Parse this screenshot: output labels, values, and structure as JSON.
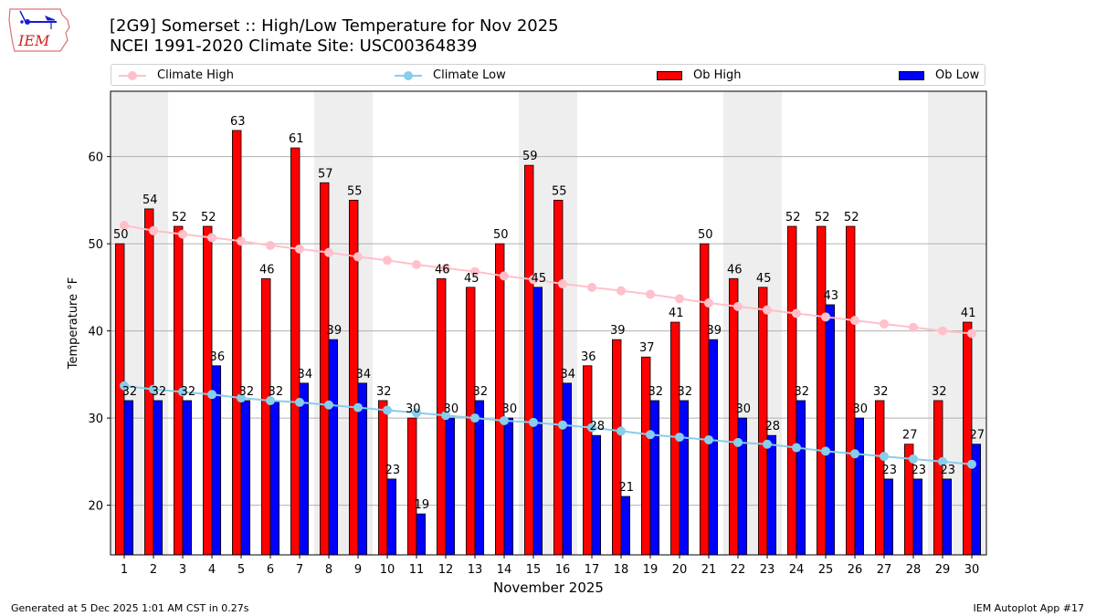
{
  "header": {
    "title_line1": "[2G9] Somerset :: High/Low Temperature for Nov 2025",
    "title_line2": "NCEI 1991-2020 Climate Site: USC00364839",
    "logo_text": "IEM"
  },
  "legend": {
    "items": [
      {
        "label": "Climate High",
        "kind": "line-marker",
        "color": "#FFC0CB"
      },
      {
        "label": "Climate Low",
        "kind": "line-marker",
        "color": "#87CEEB"
      },
      {
        "label": "Ob High",
        "kind": "bar",
        "color": "#FF0000"
      },
      {
        "label": "Ob Low",
        "kind": "bar",
        "color": "#0000FF"
      }
    ]
  },
  "footer": {
    "left": "Generated at 5 Dec 2025 1:01 AM CST in 0.27s",
    "right": "IEM Autoplot App #17"
  },
  "chart_data": {
    "type": "bar",
    "title": "[2G9] Somerset :: High/Low Temperature for Nov 2025",
    "subtitle": "NCEI 1991-2020 Climate Site: USC00364839",
    "xlabel": "November 2025",
    "ylabel": "Temperature °F",
    "categories": [
      "1",
      "2",
      "3",
      "4",
      "5",
      "6",
      "7",
      "8",
      "9",
      "10",
      "11",
      "12",
      "13",
      "14",
      "15",
      "16",
      "17",
      "18",
      "19",
      "20",
      "21",
      "22",
      "23",
      "24",
      "25",
      "26",
      "27",
      "28",
      "29",
      "30"
    ],
    "ylim": [
      14.3,
      67.5
    ],
    "yticks": [
      20,
      30,
      40,
      50,
      60
    ],
    "grid": "horizontal",
    "legend_position": "top",
    "weekend_shading_days": [
      1,
      2,
      8,
      9,
      15,
      16,
      22,
      23,
      29,
      30
    ],
    "shading_color": "#EEEEEE",
    "series": [
      {
        "name": "Ob High",
        "type": "bar",
        "color": "#FF0000",
        "values": [
          50,
          54,
          52,
          52,
          63,
          46,
          61,
          57,
          55,
          32,
          30,
          46,
          45,
          50,
          59,
          55,
          36,
          39,
          37,
          41,
          50,
          46,
          45,
          52,
          52,
          52,
          32,
          27,
          32,
          41
        ]
      },
      {
        "name": "Ob Low",
        "type": "bar",
        "color": "#0000FF",
        "values": [
          32,
          32,
          32,
          36,
          32,
          32,
          34,
          39,
          34,
          23,
          19,
          30,
          32,
          30,
          45,
          34,
          28,
          21,
          32,
          32,
          39,
          30,
          28,
          32,
          43,
          30,
          23,
          23,
          23,
          27
        ]
      },
      {
        "name": "Climate High",
        "type": "line",
        "color": "#FFC0CB",
        "values": [
          52.1,
          51.5,
          51.1,
          50.7,
          50.3,
          49.8,
          49.4,
          49.0,
          48.5,
          48.1,
          47.6,
          47.2,
          46.8,
          46.3,
          45.9,
          45.4,
          45.0,
          44.6,
          44.2,
          43.7,
          43.2,
          42.8,
          42.4,
          42.0,
          41.6,
          41.2,
          40.8,
          40.4,
          40.0,
          39.7
        ]
      },
      {
        "name": "Climate Low",
        "type": "line",
        "color": "#87CEEB",
        "values": [
          33.7,
          33.3,
          33.0,
          32.7,
          32.3,
          32.0,
          31.8,
          31.5,
          31.2,
          30.9,
          30.6,
          30.3,
          30.0,
          29.7,
          29.5,
          29.2,
          28.9,
          28.5,
          28.1,
          27.8,
          27.5,
          27.2,
          27.0,
          26.6,
          26.2,
          25.9,
          25.6,
          25.3,
          25.0,
          24.7
        ]
      }
    ]
  }
}
